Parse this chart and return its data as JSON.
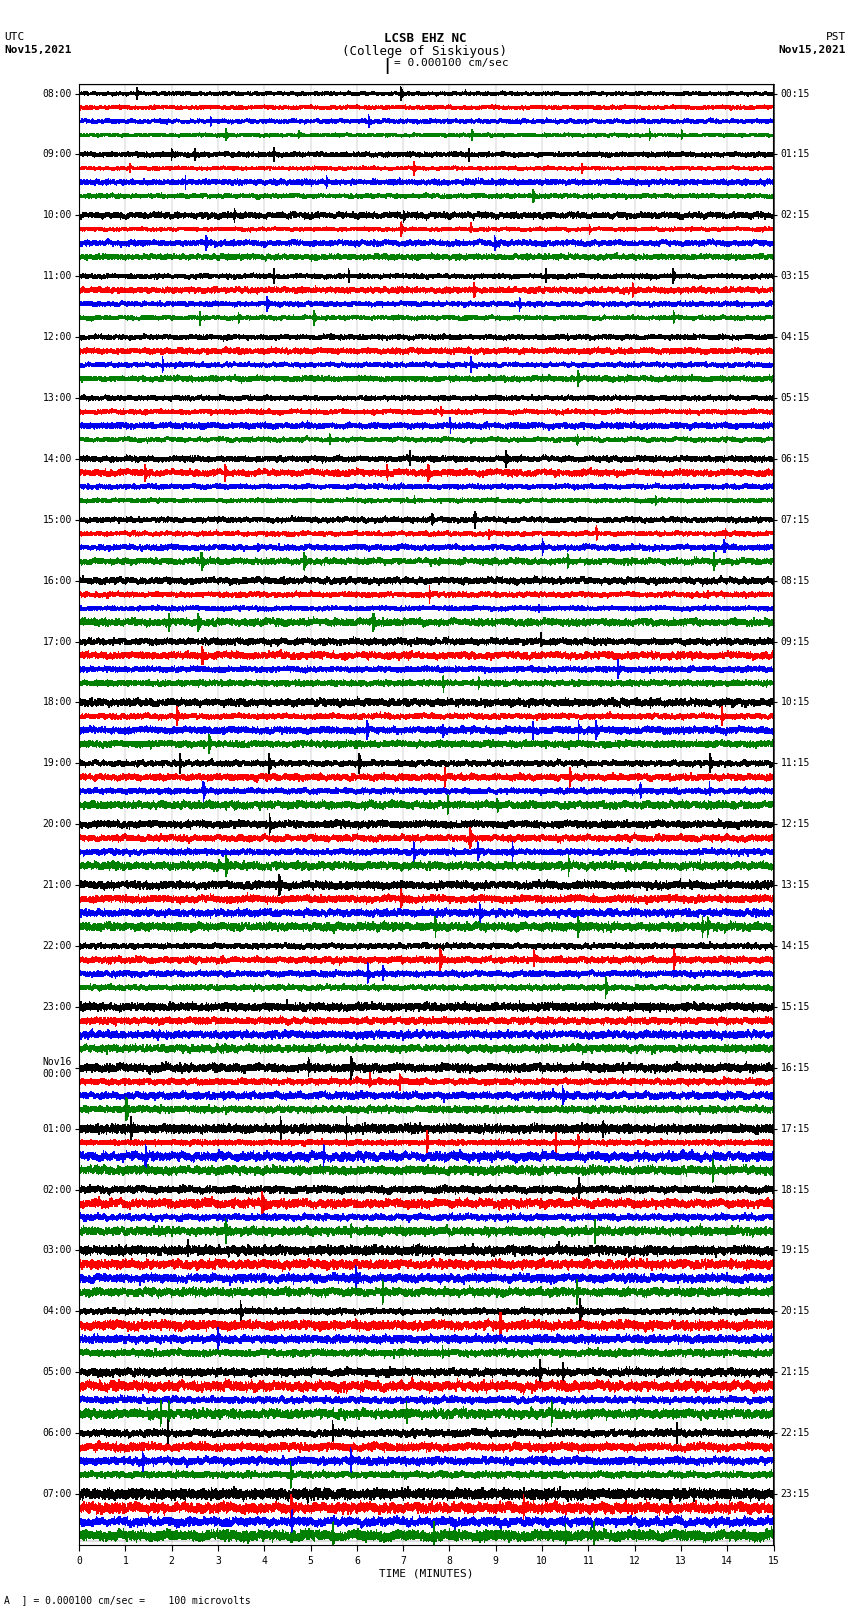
{
  "title_line1": "LCSB EHZ NC",
  "title_line2": "(College of Siskiyous)",
  "scale_text": "I = 0.000100 cm/sec",
  "left_label_line1": "UTC",
  "left_label_line2": "Nov15,2021",
  "right_label_line1": "PST",
  "right_label_line2": "Nov15,2021",
  "bottom_label": "TIME (MINUTES)",
  "footnote": "A  ] = 0.000100 cm/sec =    100 microvolts",
  "xlabel_ticks": [
    0,
    1,
    2,
    3,
    4,
    5,
    6,
    7,
    8,
    9,
    10,
    11,
    12,
    13,
    14,
    15
  ],
  "utc_hour_labels": [
    "08:00",
    "09:00",
    "10:00",
    "11:00",
    "12:00",
    "13:00",
    "14:00",
    "15:00",
    "16:00",
    "17:00",
    "18:00",
    "19:00",
    "20:00",
    "21:00",
    "22:00",
    "23:00",
    "Nov16\n00:00",
    "01:00",
    "02:00",
    "03:00",
    "04:00",
    "05:00",
    "06:00",
    "07:00"
  ],
  "pst_hour_labels": [
    "00:15",
    "01:15",
    "02:15",
    "03:15",
    "04:15",
    "05:15",
    "06:15",
    "07:15",
    "08:15",
    "09:15",
    "10:15",
    "11:15",
    "12:15",
    "13:15",
    "14:15",
    "15:15",
    "16:15",
    "17:15",
    "18:15",
    "19:15",
    "20:15",
    "21:15",
    "22:15",
    "23:15"
  ],
  "colors": [
    "black",
    "red",
    "blue",
    "green"
  ],
  "n_hours": 24,
  "traces_per_hour": 4,
  "trace_duration": 15.0,
  "sample_rate": 100,
  "background_color": "white",
  "trace_lw": 0.35,
  "fig_width": 8.5,
  "fig_height": 16.13,
  "dpi": 100
}
